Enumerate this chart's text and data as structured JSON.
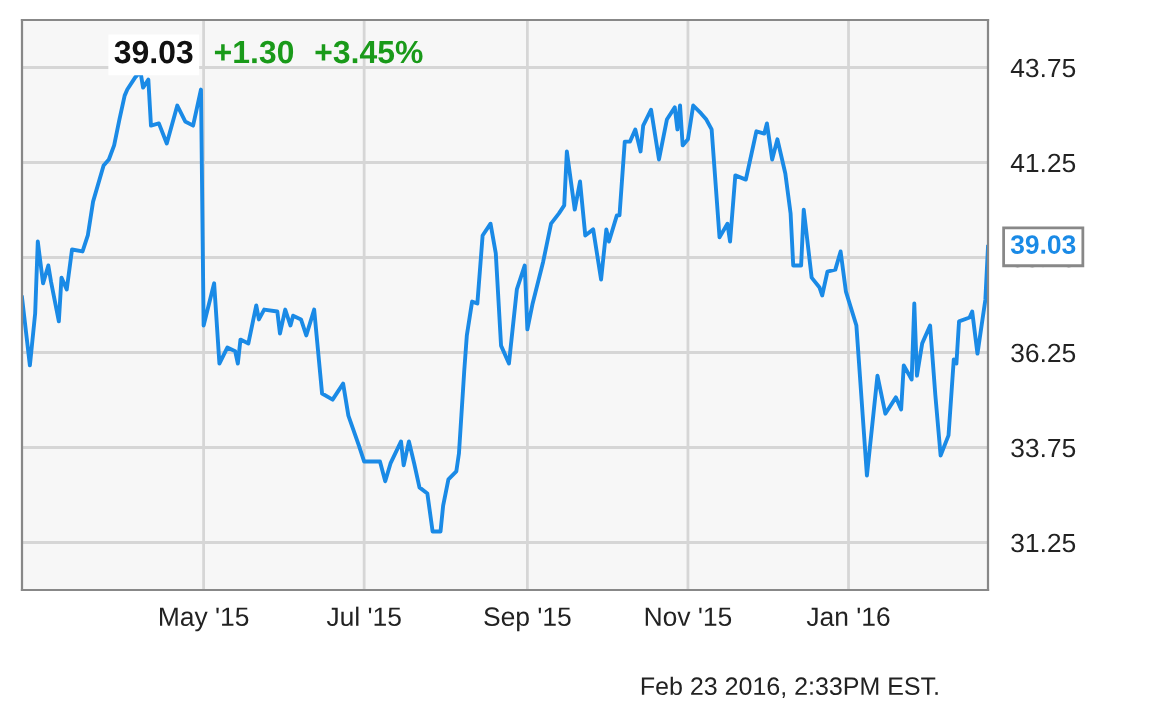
{
  "chart_data": {
    "type": "line",
    "x": [
      "2015-02-21",
      "2015-02-24",
      "2015-02-26",
      "2015-02-27",
      "2015-03-01",
      "2015-03-03",
      "2015-03-04",
      "2015-03-07",
      "2015-03-08",
      "2015-03-10",
      "2015-03-12",
      "2015-03-16",
      "2015-03-18",
      "2015-03-20",
      "2015-03-24",
      "2015-03-26",
      "2015-03-28",
      "2015-03-30",
      "2015-04-01",
      "2015-04-02",
      "2015-04-05",
      "2015-04-07",
      "2015-04-08",
      "2015-04-10",
      "2015-04-11",
      "2015-04-14",
      "2015-04-17",
      "2015-04-21",
      "2015-04-24",
      "2015-04-27",
      "2015-04-30",
      "2015-05-01",
      "2015-05-05",
      "2015-05-07",
      "2015-05-10",
      "2015-05-13",
      "2015-05-14",
      "2015-05-15",
      "2015-05-18",
      "2015-05-21",
      "2015-05-22",
      "2015-05-24",
      "2015-05-29",
      "2015-05-30",
      "2015-06-01",
      "2015-06-03",
      "2015-06-04",
      "2015-06-07",
      "2015-06-09",
      "2015-06-12",
      "2015-06-15",
      "2015-06-19",
      "2015-06-23",
      "2015-06-25",
      "2015-06-29",
      "2015-07-01",
      "2015-07-07",
      "2015-07-09",
      "2015-07-11",
      "2015-07-15",
      "2015-07-16",
      "2015-07-18",
      "2015-07-20",
      "2015-07-22",
      "2015-07-25",
      "2015-07-27",
      "2015-07-30",
      "2015-07-31",
      "2015-08-02",
      "2015-08-05",
      "2015-08-06",
      "2015-08-08",
      "2015-08-09",
      "2015-08-11",
      "2015-08-13",
      "2015-08-15",
      "2015-08-18",
      "2015-08-20",
      "2015-08-22",
      "2015-08-25",
      "2015-08-28",
      "2015-08-31",
      "2015-09-01",
      "2015-09-03",
      "2015-09-07",
      "2015-09-10",
      "2015-09-13",
      "2015-09-15",
      "2015-09-16",
      "2015-09-19",
      "2015-09-21",
      "2015-09-23",
      "2015-09-26",
      "2015-09-29",
      "2015-10-01",
      "2015-10-02",
      "2015-10-05",
      "2015-10-06",
      "2015-10-08",
      "2015-10-10",
      "2015-10-12",
      "2015-10-14",
      "2015-10-15",
      "2015-10-18",
      "2015-10-21",
      "2015-10-24",
      "2015-10-27",
      "2015-10-28",
      "2015-10-29",
      "2015-10-30",
      "2015-11-01",
      "2015-11-03",
      "2015-11-06",
      "2015-11-08",
      "2015-11-10",
      "2015-11-13",
      "2015-11-16",
      "2015-11-17",
      "2015-11-19",
      "2015-11-23",
      "2015-11-26",
      "2015-11-27",
      "2015-11-30",
      "2015-12-01",
      "2015-12-03",
      "2015-12-05",
      "2015-12-08",
      "2015-12-10",
      "2015-12-11",
      "2015-12-14",
      "2015-12-15",
      "2015-12-18",
      "2015-12-21",
      "2015-12-22",
      "2015-12-24",
      "2015-12-27",
      "2015-12-29",
      "2015-12-31",
      "2016-01-04",
      "2016-01-08",
      "2016-01-12",
      "2016-01-15",
      "2016-01-19",
      "2016-01-21",
      "2016-01-22",
      "2016-01-25",
      "2016-01-26",
      "2016-01-27",
      "2016-01-29",
      "2016-02-01",
      "2016-02-03",
      "2016-02-05",
      "2016-02-08",
      "2016-02-10",
      "2016-02-11",
      "2016-02-12",
      "2016-02-16",
      "2016-02-17",
      "2016-02-19",
      "2016-02-22",
      "2016-02-23"
    ],
    "series": [
      {
        "color": "#1a8ae6",
        "values": [
          37.7,
          35.91,
          37.28,
          39.17,
          38.07,
          38.54,
          38.12,
          37.07,
          38.22,
          37.91,
          38.96,
          38.91,
          39.33,
          40.22,
          41.17,
          41.33,
          41.7,
          42.38,
          43.01,
          43.17,
          43.49,
          43.64,
          43.22,
          43.43,
          42.22,
          42.28,
          41.75,
          42.75,
          42.33,
          42.22,
          43.17,
          36.96,
          38.07,
          35.96,
          36.38,
          36.28,
          35.96,
          36.59,
          36.49,
          37.49,
          37.12,
          37.38,
          37.33,
          36.75,
          37.38,
          36.96,
          37.22,
          37.12,
          36.7,
          37.38,
          35.17,
          35.01,
          35.43,
          34.59,
          33.8,
          33.38,
          33.38,
          32.86,
          33.33,
          33.91,
          33.28,
          33.91,
          33.33,
          32.7,
          32.54,
          31.54,
          31.54,
          32.22,
          32.91,
          33.12,
          33.59,
          35.75,
          36.7,
          37.59,
          37.54,
          39.33,
          39.64,
          38.86,
          36.43,
          35.96,
          37.91,
          38.54,
          36.86,
          37.54,
          38.64,
          39.64,
          39.91,
          40.12,
          41.54,
          40.01,
          40.75,
          39.33,
          39.49,
          38.17,
          39.49,
          39.17,
          39.86,
          39.86,
          41.8,
          41.8,
          42.12,
          41.54,
          42.22,
          42.64,
          41.33,
          42.38,
          42.7,
          42.12,
          42.75,
          41.7,
          41.86,
          42.75,
          42.54,
          42.38,
          42.12,
          39.28,
          39.64,
          39.17,
          40.91,
          40.8,
          41.75,
          42.07,
          42.01,
          42.28,
          41.33,
          41.86,
          40.96,
          39.91,
          38.54,
          38.54,
          40.01,
          38.22,
          37.96,
          37.75,
          38.38,
          38.43,
          38.91,
          37.86,
          36.96,
          33.01,
          35.64,
          34.64,
          35.07,
          34.75,
          35.91,
          35.54,
          37.54,
          35.64,
          36.49,
          36.96,
          35.12,
          33.54,
          34.07,
          36.07,
          35.96,
          37.07,
          37.17,
          37.33,
          36.22,
          37.64,
          39.03
        ]
      }
    ],
    "xlim": [
      "2015-02-21",
      "2016-02-23"
    ],
    "xticks": [
      {
        "value": "2015-05-01",
        "label": "May '15"
      },
      {
        "value": "2015-07-01",
        "label": "Jul '15"
      },
      {
        "value": "2015-09-01",
        "label": "Sep '15"
      },
      {
        "value": "2015-11-01",
        "label": "Nov '15"
      },
      {
        "value": "2016-01-01",
        "label": "Jan '16"
      }
    ],
    "ylim": [
      30,
      45
    ],
    "yticks": [
      31.25,
      33.75,
      36.25,
      38.75,
      41.25,
      43.75
    ],
    "grid": true,
    "marker": "none",
    "line_style": "solid",
    "annotations": [
      "39.03",
      "+1.30",
      "+3.45%",
      "Feb 23 2016, 2:33PM EST.",
      {
        "text": "39.03",
        "x": "2016-02-23",
        "y": 39.03
      }
    ]
  }
}
